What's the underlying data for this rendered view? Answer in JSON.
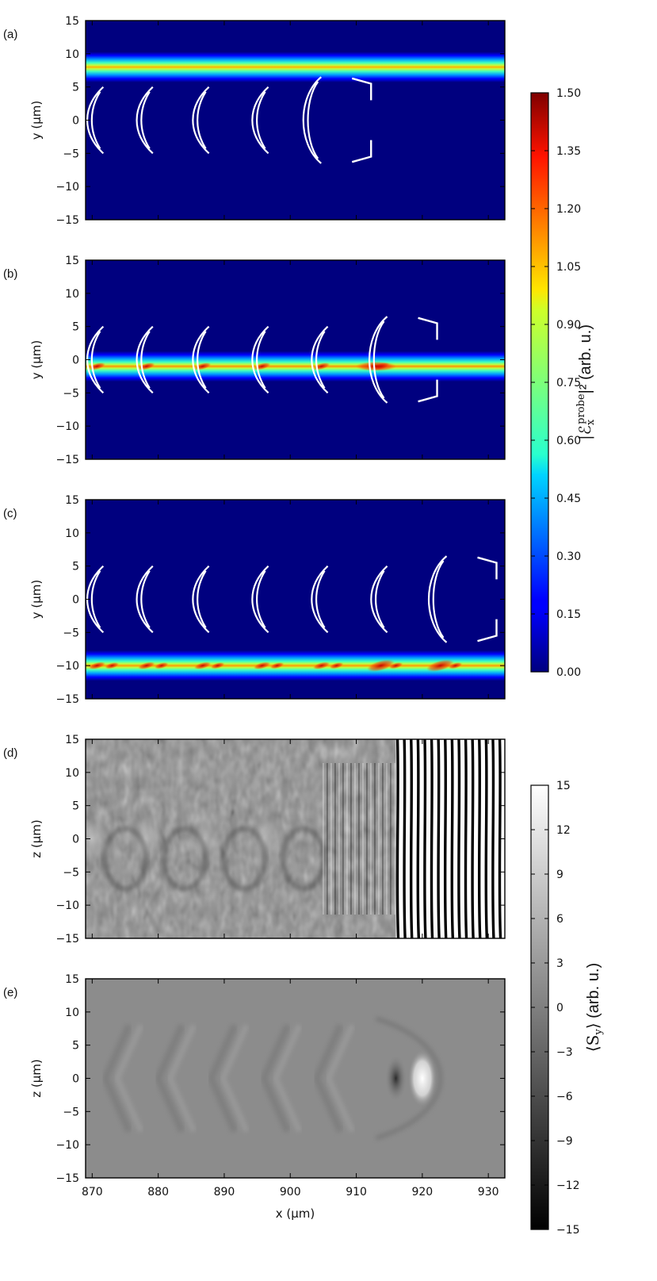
{
  "chart_data": [
    {
      "panel_label": "(a)",
      "type": "heatmap",
      "xlabel": "",
      "ylabel": "y (μm)",
      "xlim": [
        869,
        932.5
      ],
      "ylim": [
        -15,
        15
      ],
      "yticks": [
        15,
        10,
        5,
        0,
        -5,
        -10,
        -15
      ],
      "beam_center_y": 8,
      "beam_half_width": 2.3,
      "contour_x": [
        870,
        877.5,
        886,
        895,
        904
      ],
      "colormap": "jet"
    },
    {
      "panel_label": "(b)",
      "type": "heatmap",
      "xlabel": "",
      "ylabel": "y (μm)",
      "xlim": [
        869,
        932.5
      ],
      "ylim": [
        -15,
        15
      ],
      "yticks": [
        15,
        10,
        5,
        0,
        -5,
        -10,
        -15
      ],
      "beam_center_y": -1,
      "beam_half_width": 2.3,
      "contour_x": [
        870,
        877.5,
        886,
        895,
        904,
        913
      ],
      "colormap": "jet"
    },
    {
      "panel_label": "(c)",
      "type": "heatmap",
      "xlabel": "",
      "ylabel": "y (μm)",
      "xlim": [
        869,
        932.5
      ],
      "ylim": [
        -15,
        15
      ],
      "yticks": [
        15,
        10,
        5,
        0,
        -5,
        -10,
        -15
      ],
      "beam_center_y": -10,
      "beam_half_width": 2.3,
      "contour_x": [
        870,
        877.5,
        886,
        895,
        904,
        913,
        922
      ],
      "colormap": "jet"
    },
    {
      "panel_label": "(d)",
      "type": "heatmap",
      "xlabel": "",
      "ylabel": "z (μm)",
      "xlim": [
        869,
        932.5
      ],
      "ylim": [
        -15,
        15
      ],
      "yticks": [
        15,
        10,
        5,
        0,
        -5,
        -10,
        -15
      ],
      "fringes_start_x": 916,
      "colormap": "gray"
    },
    {
      "panel_label": "(e)",
      "type": "heatmap",
      "xlabel": "x (μm)",
      "ylabel": "z (μm)",
      "xlim": [
        869,
        932.5
      ],
      "ylim": [
        -15,
        15
      ],
      "xticks": [
        870,
        880,
        890,
        900,
        910,
        920,
        930
      ],
      "yticks": [
        15,
        10,
        5,
        0,
        -5,
        -10,
        -15
      ],
      "bright_spot_x": 920,
      "dark_spot_x": 916,
      "colormap": "gray"
    }
  ],
  "colorbars": [
    {
      "label": "|ℰx^probe|² (arb. u.)",
      "label_main": "|ℰ",
      "label_sub": "x",
      "label_sup": "probe",
      "label_rest": "|² (arb. u.)",
      "range": [
        0,
        1.5
      ],
      "ticks": [
        "1.50",
        "1.35",
        "1.20",
        "1.05",
        "0.90",
        "0.75",
        "0.60",
        "0.45",
        "0.30",
        "0.15",
        "0.00"
      ],
      "colormap": "jet"
    },
    {
      "label": "⟨Sy⟩ (arb. u.)",
      "label_main": "⟨S",
      "label_sub": "y",
      "label_rest": "⟩ (arb. u.)",
      "range": [
        -15,
        15
      ],
      "ticks": [
        "15",
        "12",
        "9",
        "6",
        "3",
        "0",
        "−3",
        "−6",
        "−9",
        "−12",
        "−15"
      ],
      "colormap": "gray"
    }
  ],
  "colors": {
    "jet_background": "#00007f",
    "contour": "#ffffff",
    "gray_mid": "#8c8c8c"
  }
}
